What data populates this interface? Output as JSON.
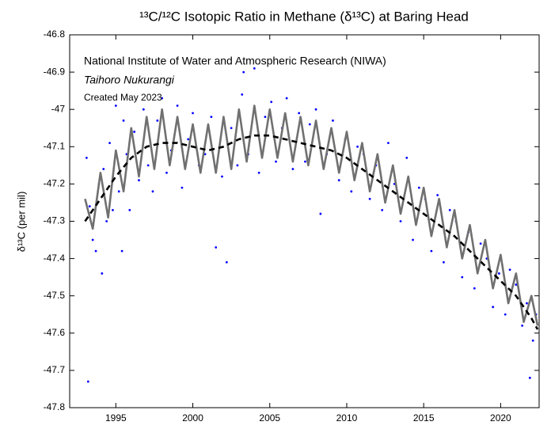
{
  "chart_data": {
    "type": "scatter",
    "title": "¹³C/¹²C Isotopic Ratio in Methane (δ¹³C) at Baring Head",
    "y_label": "δ¹³C (per mil)",
    "annotations": [
      "National Institute of Water and Atmospheric Research (NIWA)",
      "Taihoro Nukurangi",
      "Created May 2023"
    ],
    "xlim": [
      1992,
      2022.5
    ],
    "ylim": [
      -47.8,
      -46.8
    ],
    "xticks": [
      1995,
      2000,
      2005,
      2010,
      2015,
      2020
    ],
    "yticks": [
      -46.8,
      -46.9,
      -47,
      -47.1,
      -47.2,
      -47.3,
      -47.4,
      -47.5,
      -47.6,
      -47.7,
      -47.8
    ],
    "grid": false,
    "series": [
      {
        "type": "scatter",
        "color": "#0000ff",
        "x": [
          1993.1,
          1993.2,
          1993.3,
          1993.5,
          1993.7,
          1993.9,
          1994.1,
          1994.2,
          1994.4,
          1994.6,
          1994.8,
          1995.0,
          1995.2,
          1995.4,
          1995.5,
          1995.7,
          1995.9,
          1996.2,
          1996.5,
          1996.8,
          1997.1,
          1997.4,
          1997.7,
          1998.0,
          1998.3,
          1998.6,
          1999.0,
          1999.3,
          1999.7,
          2000.0,
          2000.4,
          2000.8,
          2001.2,
          2001.5,
          2001.9,
          2002.2,
          2002.5,
          2002.9,
          2003.2,
          2003.3,
          2003.6,
          2004.0,
          2004.3,
          2004.7,
          2005.1,
          2005.4,
          2005.8,
          2006.1,
          2006.5,
          2006.9,
          2007.3,
          2007.6,
          2008.0,
          2008.3,
          2008.7,
          2009.1,
          2009.5,
          2009.9,
          2010.3,
          2010.7,
          2011.1,
          2011.5,
          2011.9,
          2012.3,
          2012.7,
          2013.1,
          2013.5,
          2013.9,
          2014.3,
          2014.7,
          2015.1,
          2015.5,
          2015.9,
          2016.3,
          2016.7,
          2017.1,
          2017.5,
          2017.9,
          2018.3,
          2018.7,
          2019.1,
          2019.5,
          2019.9,
          2020.3,
          2020.6,
          2021.0,
          2021.4,
          2021.7,
          2021.9,
          2022.1,
          2022.3
        ],
        "values": [
          -47.13,
          -47.73,
          -47.26,
          -47.35,
          -47.38,
          -47.2,
          -47.44,
          -47.16,
          -47.3,
          -47.09,
          -47.27,
          -46.99,
          -47.22,
          -47.38,
          -47.03,
          -47.12,
          -47.27,
          -47.06,
          -47.19,
          -47.0,
          -47.15,
          -47.22,
          -47.03,
          -46.97,
          -47.17,
          -47.11,
          -46.99,
          -47.21,
          -47.08,
          -47.01,
          -47.15,
          -47.12,
          -47.02,
          -47.37,
          -47.18,
          -47.41,
          -47.05,
          -47.15,
          -46.96,
          -46.9,
          -47.12,
          -46.89,
          -47.17,
          -47.02,
          -46.98,
          -47.14,
          -47.05,
          -46.97,
          -47.16,
          -47.01,
          -47.14,
          -47.04,
          -47.0,
          -47.28,
          -47.12,
          -47.03,
          -47.19,
          -47.08,
          -47.22,
          -47.1,
          -47.12,
          -47.24,
          -47.15,
          -47.27,
          -47.09,
          -47.2,
          -47.3,
          -47.13,
          -47.35,
          -47.21,
          -47.24,
          -47.38,
          -47.23,
          -47.41,
          -47.27,
          -47.3,
          -47.45,
          -47.33,
          -47.48,
          -47.36,
          -47.4,
          -47.53,
          -47.44,
          -47.55,
          -47.43,
          -47.47,
          -47.58,
          -47.52,
          -47.72,
          -47.62,
          -47.55
        ]
      },
      {
        "type": "line",
        "color": "#707070",
        "dash": false,
        "x": [
          1993.0,
          1993.5,
          1994.0,
          1994.5,
          1995.0,
          1995.5,
          1996.0,
          1996.5,
          1997.0,
          1997.5,
          1998.0,
          1998.5,
          1999.0,
          1999.5,
          2000.0,
          2000.5,
          2001.0,
          2001.5,
          2002.0,
          2002.5,
          2003.0,
          2003.5,
          2004.0,
          2004.5,
          2005.0,
          2005.5,
          2006.0,
          2006.5,
          2007.0,
          2007.5,
          2008.0,
          2008.5,
          2009.0,
          2009.5,
          2010.0,
          2010.5,
          2011.0,
          2011.5,
          2012.0,
          2012.5,
          2013.0,
          2013.5,
          2014.0,
          2014.5,
          2015.0,
          2015.5,
          2016.0,
          2016.5,
          2017.0,
          2017.5,
          2018.0,
          2018.5,
          2019.0,
          2019.5,
          2020.0,
          2020.5,
          2021.0,
          2021.5,
          2022.0,
          2022.4
        ],
        "values": [
          -47.24,
          -47.32,
          -47.17,
          -47.29,
          -47.11,
          -47.22,
          -47.05,
          -47.18,
          -47.02,
          -47.16,
          -47.0,
          -47.15,
          -47.02,
          -47.16,
          -47.04,
          -47.17,
          -47.04,
          -47.17,
          -47.02,
          -47.16,
          -47.0,
          -47.14,
          -46.99,
          -47.13,
          -47.0,
          -47.13,
          -47.01,
          -47.14,
          -47.02,
          -47.15,
          -47.03,
          -47.16,
          -47.05,
          -47.17,
          -47.06,
          -47.19,
          -47.09,
          -47.22,
          -47.12,
          -47.25,
          -47.15,
          -47.28,
          -47.18,
          -47.31,
          -47.21,
          -47.34,
          -47.24,
          -47.37,
          -47.27,
          -47.4,
          -47.31,
          -47.44,
          -47.35,
          -47.48,
          -47.39,
          -47.52,
          -47.44,
          -47.57,
          -47.5,
          -47.58
        ]
      },
      {
        "type": "line",
        "color": "#000000",
        "dash": true,
        "x": [
          1993,
          1994,
          1995,
          1996,
          1997,
          1998,
          1999,
          2000,
          2001,
          2002,
          2003,
          2004,
          2005,
          2006,
          2007,
          2008,
          2009,
          2010,
          2011,
          2012,
          2013,
          2014,
          2015,
          2016,
          2017,
          2018,
          2019,
          2020,
          2021,
          2022,
          2022.4
        ],
        "values": [
          -47.3,
          -47.24,
          -47.18,
          -47.13,
          -47.1,
          -47.09,
          -47.09,
          -47.1,
          -47.11,
          -47.1,
          -47.08,
          -47.07,
          -47.07,
          -47.08,
          -47.09,
          -47.1,
          -47.11,
          -47.13,
          -47.16,
          -47.19,
          -47.22,
          -47.25,
          -47.28,
          -47.31,
          -47.34,
          -47.38,
          -47.42,
          -47.46,
          -47.5,
          -47.56,
          -47.59
        ]
      }
    ]
  }
}
